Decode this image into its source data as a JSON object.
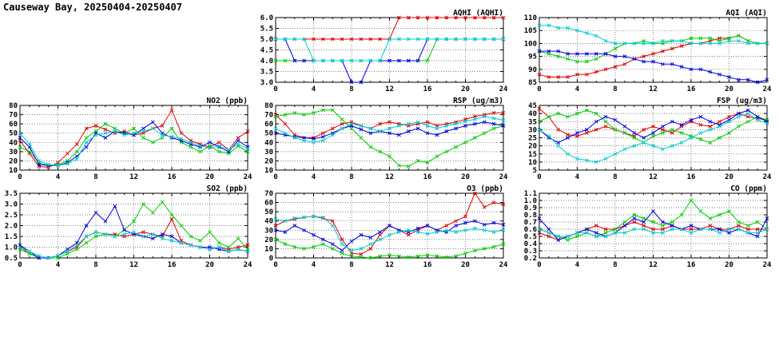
{
  "page": {
    "title": "Causeway Bay, 20250404-20250407"
  },
  "colors": {
    "red": "#dd0000",
    "green": "#00cc00",
    "blue": "#0000dd",
    "cyan": "#00cccc"
  },
  "chart_data": [
    {
      "id": "aqhi",
      "type": "line",
      "title": "AQHI (AQHI)",
      "xlabel": "",
      "ylabel": "",
      "ylim": [
        3,
        6
      ],
      "ystep": 0.5,
      "decimals": 1,
      "xlim": [
        0,
        24
      ],
      "xstep": 4,
      "grid": true,
      "legend": "none",
      "series": [
        {
          "name": "red",
          "color": "#dd0000",
          "values": [
            5,
            5,
            5,
            5,
            5,
            5,
            5,
            5,
            5,
            5,
            5,
            5,
            5,
            6,
            6,
            6,
            6,
            6,
            6,
            6,
            6,
            6,
            6,
            6,
            6
          ]
        },
        {
          "name": "green",
          "color": "#00cc00",
          "values": [
            4,
            4,
            4,
            4,
            4,
            4,
            4,
            4,
            4,
            4,
            4,
            4,
            4,
            4,
            4,
            4,
            4,
            5,
            5,
            5,
            5,
            5,
            5,
            5,
            5
          ]
        },
        {
          "name": "blue",
          "color": "#0000dd",
          "values": [
            5,
            5,
            4,
            4,
            4,
            4,
            4,
            4,
            3,
            3,
            4,
            4,
            4,
            4,
            4,
            4,
            5,
            5,
            5,
            5,
            5,
            5,
            5,
            5,
            5
          ]
        },
        {
          "name": "cyan",
          "color": "#00cccc",
          "values": [
            5,
            5,
            5,
            5,
            4,
            4,
            4,
            4,
            4,
            4,
            4,
            4,
            5,
            5,
            5,
            5,
            5,
            5,
            5,
            5,
            5,
            5,
            5,
            5,
            5
          ]
        }
      ]
    },
    {
      "id": "aqi",
      "type": "line",
      "title": "AQI (AQI)",
      "xlabel": "",
      "ylabel": "",
      "ylim": [
        85,
        110
      ],
      "ystep": 5,
      "decimals": 0,
      "xlim": [
        0,
        24
      ],
      "xstep": 4,
      "grid": true,
      "legend": "none",
      "series": [
        {
          "name": "red",
          "color": "#dd0000",
          "values": [
            88,
            87,
            87,
            87,
            88,
            88,
            89,
            90,
            91,
            92,
            94,
            95,
            96,
            97,
            98,
            99,
            100,
            100,
            101,
            102,
            102,
            103,
            101,
            100,
            100
          ]
        },
        {
          "name": "green",
          "color": "#00cc00",
          "values": [
            97,
            96,
            95,
            94,
            93,
            93,
            94,
            96,
            98,
            100,
            100,
            101,
            100,
            100,
            101,
            101,
            102,
            102,
            102,
            101,
            102,
            103,
            101,
            100,
            100
          ]
        },
        {
          "name": "blue",
          "color": "#0000dd",
          "values": [
            97,
            97,
            97,
            96,
            96,
            96,
            96,
            96,
            95,
            95,
            94,
            93,
            93,
            92,
            92,
            91,
            90,
            90,
            89,
            88,
            87,
            86,
            86,
            85,
            86
          ]
        },
        {
          "name": "cyan",
          "color": "#00cccc",
          "values": [
            107,
            107,
            106,
            106,
            105,
            104,
            103,
            101,
            100,
            100,
            100,
            100,
            100,
            101,
            101,
            101,
            100,
            100,
            100,
            100,
            101,
            101,
            100,
            100,
            100
          ]
        }
      ]
    },
    {
      "id": "no2",
      "type": "line",
      "title": "NO2 (ppb)",
      "xlabel": "",
      "ylabel": "",
      "ylim": [
        10,
        80
      ],
      "ystep": 10,
      "decimals": 0,
      "xlim": [
        0,
        24
      ],
      "xstep": 4,
      "grid": true,
      "legend": "none",
      "series": [
        {
          "name": "red",
          "color": "#dd0000",
          "values": [
            42,
            28,
            14,
            13,
            18,
            28,
            38,
            55,
            58,
            54,
            50,
            52,
            48,
            50,
            55,
            58,
            75,
            50,
            42,
            38,
            35,
            40,
            32,
            45,
            52
          ]
        },
        {
          "name": "green",
          "color": "#00cc00",
          "values": [
            35,
            30,
            18,
            15,
            16,
            20,
            30,
            45,
            52,
            60,
            55,
            50,
            55,
            45,
            40,
            45,
            55,
            40,
            35,
            30,
            36,
            30,
            28,
            36,
            30
          ]
        },
        {
          "name": "blue",
          "color": "#0000dd",
          "values": [
            45,
            35,
            16,
            15,
            15,
            18,
            25,
            35,
            50,
            45,
            52,
            50,
            48,
            55,
            62,
            50,
            45,
            42,
            38,
            35,
            40,
            35,
            30,
            42,
            35
          ]
        },
        {
          "name": "cyan",
          "color": "#00cccc",
          "values": [
            50,
            38,
            20,
            16,
            15,
            17,
            22,
            40,
            48,
            50,
            52,
            48,
            50,
            52,
            55,
            48,
            46,
            44,
            40,
            36,
            34,
            36,
            32,
            38,
            33
          ]
        }
      ]
    },
    {
      "id": "rsp",
      "type": "line",
      "title": "RSP (ug/m3)",
      "xlabel": "",
      "ylabel": "",
      "ylim": [
        10,
        80
      ],
      "ystep": 10,
      "decimals": 0,
      "xlim": [
        0,
        24
      ],
      "xstep": 4,
      "grid": true,
      "legend": "none",
      "series": [
        {
          "name": "red",
          "color": "#dd0000",
          "values": [
            70,
            60,
            48,
            45,
            45,
            50,
            55,
            60,
            62,
            58,
            55,
            60,
            62,
            60,
            58,
            60,
            62,
            58,
            60,
            62,
            65,
            68,
            70,
            72,
            72
          ]
        },
        {
          "name": "green",
          "color": "#00cc00",
          "values": [
            68,
            70,
            72,
            70,
            72,
            75,
            75,
            65,
            55,
            45,
            35,
            30,
            25,
            15,
            14,
            20,
            18,
            25,
            30,
            35,
            40,
            45,
            50,
            55,
            58
          ]
        },
        {
          "name": "blue",
          "color": "#0000dd",
          "values": [
            50,
            48,
            46,
            45,
            44,
            46,
            50,
            55,
            58,
            54,
            50,
            52,
            50,
            48,
            52,
            55,
            50,
            48,
            52,
            55,
            58,
            60,
            62,
            60,
            58
          ]
        },
        {
          "name": "cyan",
          "color": "#00cccc",
          "values": [
            55,
            50,
            45,
            42,
            40,
            42,
            48,
            55,
            60,
            58,
            55,
            52,
            55,
            58,
            60,
            62,
            58,
            55,
            58,
            60,
            63,
            65,
            68,
            66,
            64
          ]
        }
      ]
    },
    {
      "id": "fsp",
      "type": "line",
      "title": "FSP (ug/m3)",
      "xlabel": "",
      "ylabel": "",
      "ylim": [
        5,
        45
      ],
      "ystep": 5,
      "decimals": 0,
      "xlim": [
        0,
        24
      ],
      "xstep": 4,
      "grid": true,
      "legend": "none",
      "series": [
        {
          "name": "red",
          "color": "#dd0000",
          "values": [
            43,
            38,
            30,
            27,
            26,
            28,
            30,
            32,
            30,
            28,
            26,
            30,
            32,
            30,
            28,
            32,
            35,
            33,
            32,
            35,
            38,
            40,
            38,
            37,
            36
          ]
        },
        {
          "name": "green",
          "color": "#00cc00",
          "values": [
            35,
            38,
            40,
            38,
            40,
            42,
            40,
            35,
            30,
            28,
            25,
            22,
            26,
            28,
            30,
            28,
            26,
            24,
            22,
            25,
            28,
            32,
            35,
            38,
            36
          ]
        },
        {
          "name": "blue",
          "color": "#0000dd",
          "values": [
            30,
            25,
            22,
            25,
            28,
            30,
            35,
            38,
            36,
            32,
            28,
            25,
            28,
            32,
            35,
            33,
            36,
            38,
            35,
            33,
            36,
            40,
            42,
            38,
            35
          ]
        },
        {
          "name": "cyan",
          "color": "#00cccc",
          "values": [
            30,
            26,
            20,
            15,
            12,
            11,
            10,
            12,
            15,
            18,
            20,
            22,
            20,
            18,
            20,
            22,
            25,
            28,
            30,
            32,
            35,
            38,
            40,
            36,
            34
          ]
        }
      ]
    },
    {
      "id": "so2",
      "type": "line",
      "title": "SO2 (ppb)",
      "xlabel": "",
      "ylabel": "",
      "ylim": [
        0.5,
        3.5
      ],
      "ystep": 0.5,
      "decimals": 1,
      "xlim": [
        0,
        24
      ],
      "xstep": 4,
      "grid": true,
      "legend": "none",
      "series": [
        {
          "name": "red",
          "color": "#dd0000",
          "values": [
            1.0,
            0.7,
            0.5,
            0.5,
            0.6,
            0.8,
            1.0,
            1.5,
            1.7,
            1.6,
            1.6,
            1.5,
            1.6,
            1.7,
            1.6,
            1.5,
            2.3,
            1.3,
            1.1,
            1.0,
            0.9,
            1.0,
            0.9,
            1.0,
            1.1
          ]
        },
        {
          "name": "green",
          "color": "#00cc00",
          "values": [
            0.9,
            0.7,
            0.5,
            0.5,
            0.5,
            0.7,
            0.9,
            1.2,
            1.5,
            1.6,
            1.5,
            1.8,
            2.2,
            3.0,
            2.6,
            3.1,
            2.5,
            2.0,
            1.5,
            1.3,
            1.7,
            1.2,
            1.0,
            1.4,
            0.9
          ]
        },
        {
          "name": "blue",
          "color": "#0000dd",
          "values": [
            1.1,
            0.8,
            0.5,
            0.5,
            0.6,
            0.9,
            1.2,
            2.0,
            2.6,
            2.2,
            2.9,
            1.8,
            1.6,
            1.5,
            1.4,
            1.6,
            1.5,
            1.2,
            1.1,
            1.0,
            1.0,
            0.9,
            0.8,
            0.9,
            0.8
          ]
        },
        {
          "name": "cyan",
          "color": "#00cccc",
          "values": [
            1.0,
            0.8,
            0.6,
            0.5,
            0.6,
            0.8,
            1.1,
            1.5,
            1.7,
            1.6,
            1.5,
            1.6,
            1.7,
            1.5,
            1.6,
            1.4,
            1.3,
            1.2,
            1.1,
            1.0,
            0.9,
            1.0,
            0.8,
            0.9,
            0.8
          ]
        }
      ]
    },
    {
      "id": "o3",
      "type": "line",
      "title": "O3 (ppb)",
      "xlabel": "",
      "ylabel": "",
      "ylim": [
        0,
        70
      ],
      "ystep": 10,
      "decimals": 0,
      "xlim": [
        0,
        24
      ],
      "xstep": 4,
      "grid": true,
      "legend": "none",
      "series": [
        {
          "name": "red",
          "color": "#dd0000",
          "values": [
            35,
            40,
            42,
            44,
            45,
            43,
            40,
            20,
            5,
            4,
            10,
            25,
            35,
            30,
            25,
            30,
            35,
            30,
            35,
            40,
            45,
            70,
            55,
            60,
            58
          ]
        },
        {
          "name": "green",
          "color": "#00cc00",
          "values": [
            20,
            15,
            12,
            10,
            12,
            15,
            10,
            5,
            2,
            1,
            0,
            2,
            3,
            2,
            1,
            2,
            3,
            2,
            1,
            2,
            5,
            8,
            10,
            12,
            15
          ]
        },
        {
          "name": "blue",
          "color": "#0000dd",
          "values": [
            30,
            28,
            35,
            30,
            25,
            20,
            15,
            8,
            18,
            25,
            22,
            28,
            35,
            30,
            28,
            32,
            35,
            30,
            28,
            35,
            38,
            40,
            36,
            38,
            36
          ]
        },
        {
          "name": "cyan",
          "color": "#00cccc",
          "values": [
            42,
            40,
            43,
            44,
            45,
            44,
            35,
            15,
            8,
            10,
            15,
            20,
            25,
            28,
            30,
            28,
            26,
            28,
            30,
            28,
            30,
            32,
            30,
            28,
            30
          ]
        }
      ]
    },
    {
      "id": "co",
      "type": "line",
      "title": "CO (ppm)",
      "xlabel": "",
      "ylabel": "",
      "ylim": [
        0.2,
        1.1
      ],
      "ystep": 0.1,
      "decimals": 1,
      "xlim": [
        0,
        24
      ],
      "xstep": 4,
      "grid": true,
      "legend": "none",
      "series": [
        {
          "name": "red",
          "color": "#dd0000",
          "values": [
            0.55,
            0.5,
            0.45,
            0.5,
            0.55,
            0.6,
            0.65,
            0.6,
            0.6,
            0.65,
            0.7,
            0.65,
            0.6,
            0.6,
            0.65,
            0.6,
            0.6,
            0.6,
            0.65,
            0.6,
            0.6,
            0.65,
            0.6,
            0.6,
            0.6
          ]
        },
        {
          "name": "green",
          "color": "#00cc00",
          "values": [
            0.6,
            0.55,
            0.5,
            0.45,
            0.5,
            0.55,
            0.5,
            0.55,
            0.6,
            0.7,
            0.8,
            0.75,
            0.7,
            0.65,
            0.7,
            0.8,
            1.0,
            0.85,
            0.75,
            0.8,
            0.85,
            0.7,
            0.65,
            0.7,
            0.6
          ]
        },
        {
          "name": "blue",
          "color": "#0000dd",
          "values": [
            0.75,
            0.6,
            0.45,
            0.5,
            0.55,
            0.6,
            0.55,
            0.5,
            0.55,
            0.65,
            0.75,
            0.7,
            0.85,
            0.7,
            0.65,
            0.6,
            0.65,
            0.6,
            0.6,
            0.6,
            0.55,
            0.6,
            0.55,
            0.5,
            0.75
          ]
        },
        {
          "name": "cyan",
          "color": "#00cccc",
          "values": [
            0.6,
            0.55,
            0.5,
            0.5,
            0.55,
            0.55,
            0.5,
            0.5,
            0.55,
            0.55,
            0.6,
            0.6,
            0.55,
            0.55,
            0.6,
            0.6,
            0.55,
            0.6,
            0.6,
            0.55,
            0.6,
            0.6,
            0.55,
            0.55,
            0.6
          ]
        }
      ]
    }
  ]
}
